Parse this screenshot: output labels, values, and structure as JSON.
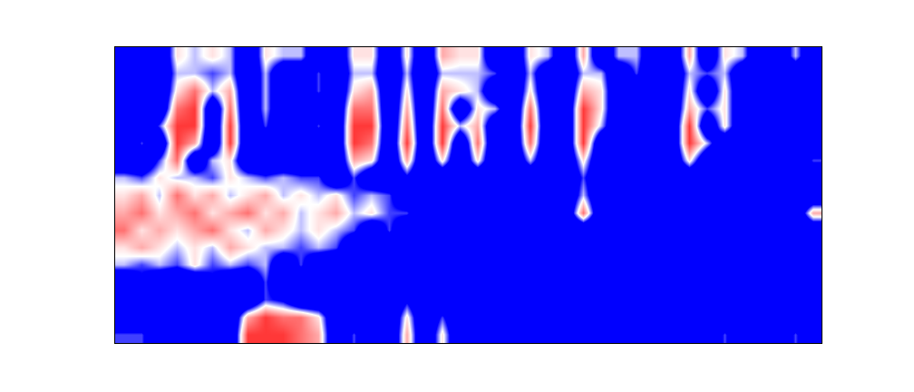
{
  "chart_data": {
    "type": "heatmap",
    "tick_labels": false,
    "zlim": [
      0,
      1
    ],
    "cells": [
      [
        0,
        0,
        0,
        0.6,
        0.5,
        0.6,
        0.5,
        0,
        0.6,
        0.5,
        0.5,
        0,
        0,
        0.6,
        0.6,
        0,
        0.6,
        0,
        0.7,
        0.6,
        0.6,
        0,
        0,
        0.6,
        0.5,
        0,
        0.7,
        0,
        0.5,
        0.5,
        0,
        0,
        0.7,
        0,
        0.6,
        0.5,
        0,
        0,
        0.5,
        0
      ],
      [
        0,
        0,
        0,
        0.5,
        0.5,
        0.4,
        0.5,
        0,
        0.5,
        0,
        0,
        0.4,
        0,
        0.5,
        0.5,
        0,
        0.5,
        0,
        0.5,
        0.5,
        0.5,
        0.4,
        0,
        0.5,
        0,
        0,
        0.5,
        0.5,
        0,
        0.4,
        0,
        0,
        0.5,
        0.4,
        0.5,
        0,
        0,
        0,
        0,
        0
      ],
      [
        0,
        0.3,
        0,
        0.6,
        0.8,
        0.5,
        0.7,
        0,
        0.5,
        0,
        0,
        0.4,
        0,
        0.6,
        0.7,
        0,
        0.6,
        0,
        0.7,
        0.6,
        0.5,
        0,
        0,
        0.6,
        0,
        0,
        0.7,
        0.6,
        0,
        0,
        0,
        0,
        0.6,
        0,
        0.6,
        0,
        0,
        0,
        0,
        0
      ],
      [
        0.3,
        0,
        0,
        0.8,
        0.9,
        0,
        0.8,
        0,
        0.5,
        0,
        0,
        0,
        0,
        0.8,
        0.8,
        0,
        0.7,
        0,
        0.8,
        0,
        0.6,
        0.5,
        0,
        0.8,
        0,
        0,
        0.9,
        0.6,
        0,
        0,
        0,
        0,
        0.7,
        0.4,
        0.6,
        0,
        0,
        0,
        0.3,
        0
      ],
      [
        0,
        0,
        0.4,
        0.9,
        0.9,
        0,
        0.9,
        0,
        0.4,
        0,
        0,
        0.4,
        0,
        0.9,
        0.9,
        0,
        0.8,
        0,
        0.9,
        0.5,
        0.7,
        0,
        0,
        0.9,
        0,
        0,
        0.9,
        0.5,
        0,
        0,
        0,
        0,
        0.9,
        0,
        0.6,
        0,
        0,
        0,
        0,
        0
      ],
      [
        0,
        0.4,
        0,
        0.9,
        0.7,
        0,
        0.9,
        0,
        0,
        0,
        0,
        0,
        0,
        0.9,
        0.8,
        0,
        0.9,
        0,
        0.9,
        0,
        0.8,
        0,
        0,
        0.8,
        0,
        0,
        0.9,
        0,
        0,
        0,
        0,
        0,
        0.9,
        0.5,
        0,
        0,
        0,
        0,
        0,
        0
      ],
      [
        0,
        0,
        0.4,
        0.8,
        0,
        0.5,
        0.6,
        0,
        0,
        0,
        0,
        0,
        0,
        0.7,
        0.6,
        0,
        0.7,
        0,
        0.6,
        0,
        0.6,
        0,
        0,
        0.5,
        0,
        0,
        0.6,
        0,
        0,
        0,
        0,
        0,
        0.6,
        0,
        0,
        0,
        0,
        0,
        0,
        0.4
      ],
      [
        0.5,
        0.4,
        0.6,
        0.5,
        0.5,
        0.4,
        0.6,
        0.5,
        0.4,
        0.5,
        0.4,
        0.4,
        0,
        0.4,
        0,
        0,
        0.3,
        0,
        0,
        0,
        0,
        0,
        0,
        0,
        0,
        0,
        0.4,
        0,
        0,
        0,
        0,
        0,
        0,
        0,
        0,
        0,
        0,
        0,
        0,
        0
      ],
      [
        0.6,
        0.7,
        0.5,
        0.8,
        0.6,
        0.7,
        0.5,
        0.6,
        0.7,
        0.5,
        0.6,
        0.5,
        0.6,
        0.4,
        0.5,
        0.4,
        0,
        0,
        0,
        0,
        0,
        0,
        0,
        0,
        0,
        0,
        0.5,
        0,
        0,
        0,
        0,
        0,
        0,
        0,
        0,
        0,
        0,
        0,
        0,
        0
      ],
      [
        0.7,
        0.8,
        0.6,
        0.7,
        0.8,
        0.6,
        0.7,
        0.8,
        0.6,
        0.7,
        0.5,
        0.6,
        0.7,
        0.5,
        0.6,
        0.4,
        0.4,
        0,
        0,
        0,
        0,
        0,
        0,
        0,
        0,
        0,
        0.8,
        0,
        0,
        0,
        0,
        0,
        0,
        0,
        0,
        0,
        0,
        0,
        0,
        0.7
      ],
      [
        0.8,
        0.6,
        0.7,
        0.6,
        0.7,
        0.8,
        0.6,
        0.5,
        0.7,
        0.6,
        0.5,
        0.6,
        0.5,
        0.4,
        0,
        0.4,
        0,
        0,
        0,
        0,
        0,
        0,
        0,
        0,
        0,
        0,
        0,
        0,
        0,
        0,
        0,
        0,
        0,
        0,
        0,
        0,
        0,
        0,
        0,
        0
      ],
      [
        0.6,
        0.7,
        0.6,
        0.5,
        0.6,
        0.5,
        0.7,
        0.6,
        0.5,
        0.5,
        0.4,
        0.5,
        0.4,
        0,
        0,
        0,
        0.3,
        0,
        0.3,
        0,
        0,
        0,
        0,
        0,
        0,
        0,
        0,
        0,
        0,
        0,
        0,
        0,
        0,
        0,
        0,
        0,
        0,
        0,
        0,
        0
      ],
      [
        0.5,
        0.4,
        0.5,
        0.4,
        0.6,
        0.4,
        0.5,
        0.4,
        0.5,
        0,
        0.4,
        0,
        0,
        0,
        0,
        0,
        0,
        0,
        0,
        0,
        0,
        0,
        0,
        0,
        0,
        0,
        0,
        0,
        0,
        0,
        0,
        0,
        0,
        0,
        0,
        0,
        0,
        0,
        0,
        0
      ],
      [
        0,
        0.3,
        0,
        0,
        0,
        0.3,
        0,
        0,
        0.4,
        0,
        0,
        0,
        0,
        0,
        0,
        0,
        0,
        0,
        0,
        0,
        0,
        0,
        0,
        0,
        0,
        0,
        0,
        0,
        0,
        0,
        0,
        0,
        0,
        0,
        0,
        0,
        0,
        0,
        0,
        0
      ],
      [
        0,
        0,
        0,
        0,
        0,
        0,
        0,
        0,
        0.4,
        0.3,
        0,
        0,
        0,
        0,
        0,
        0,
        0.3,
        0,
        0,
        0,
        0,
        0,
        0,
        0,
        0,
        0,
        0,
        0,
        0,
        0,
        0,
        0,
        0,
        0,
        0,
        0,
        0,
        0,
        0,
        0
      ],
      [
        0,
        0,
        0,
        0,
        0,
        0,
        0,
        0.7,
        0.9,
        0.8,
        0.8,
        0.6,
        0,
        0,
        0,
        0,
        0.6,
        0,
        0.4,
        0,
        0,
        0,
        0,
        0,
        0,
        0,
        0,
        0,
        0,
        0,
        0,
        0,
        0,
        0,
        0,
        0,
        0,
        0,
        0,
        0
      ],
      [
        0.4,
        0.4,
        0,
        0,
        0,
        0,
        0,
        0.9,
        0.9,
        0.9,
        0.8,
        0.7,
        0,
        0.4,
        0,
        0,
        0.7,
        0,
        0.6,
        0,
        0,
        0,
        0.3,
        0,
        0,
        0,
        0.3,
        0,
        0,
        0,
        0,
        0.3,
        0,
        0,
        0.4,
        0,
        0.3,
        0,
        0.4,
        0
      ]
    ]
  }
}
